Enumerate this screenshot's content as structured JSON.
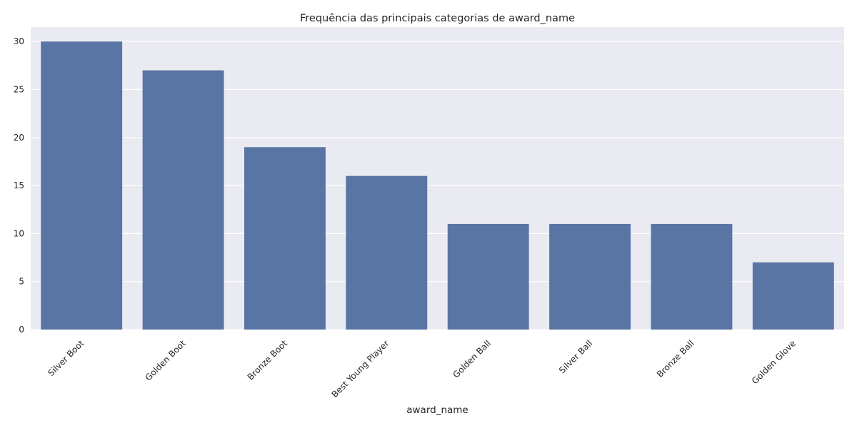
{
  "chart_data": {
    "type": "bar",
    "title": "Frequência das principais categorias de award_name",
    "xlabel": "award_name",
    "ylabel": "",
    "categories": [
      "Silver Boot",
      "Golden Boot",
      "Bronze Boot",
      "Best Young Player",
      "Golden Ball",
      "Silver Ball",
      "Bronze Ball",
      "Golden Glove"
    ],
    "values": [
      30,
      27,
      19,
      16,
      11,
      11,
      11,
      7
    ],
    "ylim": [
      0,
      31.5
    ],
    "yticks": [
      0,
      5,
      10,
      15,
      20,
      25,
      30
    ],
    "grid": true,
    "colors": {
      "bar": "#5975a4",
      "plot_background": "#eaeaf2",
      "grid": "#ffffff",
      "text": "#262626"
    }
  }
}
